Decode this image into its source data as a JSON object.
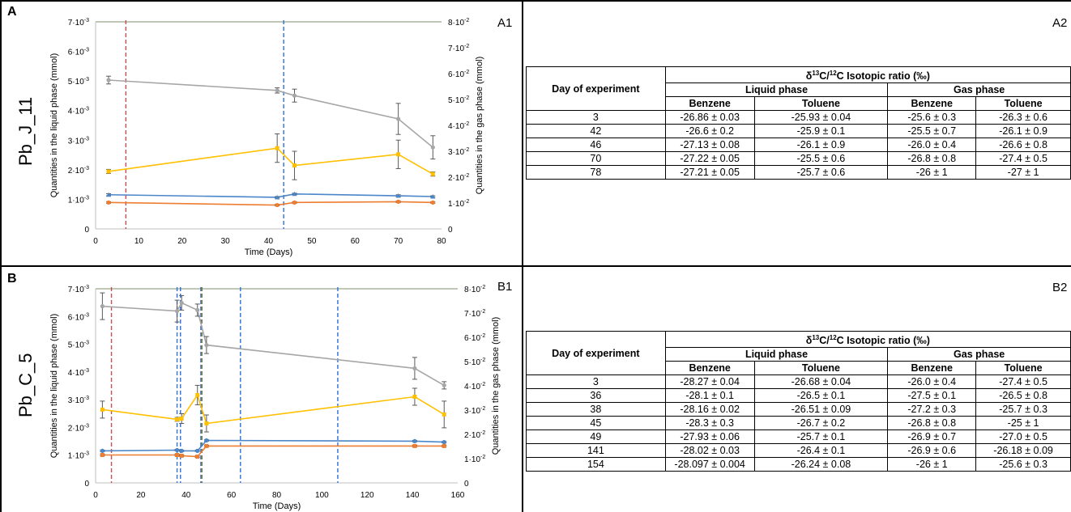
{
  "panels": {
    "A": {
      "letter": "A",
      "sample": "Pb_J_11",
      "chart_label": "A1",
      "table_label": "A2"
    },
    "B": {
      "letter": "B",
      "sample": "Pb_C_5",
      "chart_label": "B1",
      "table_label": "B2"
    }
  },
  "chart_data": [
    {
      "id": "A1",
      "type": "line",
      "xlabel": "Time (Days)",
      "ylabel": "Quantities in the liquid phase (mmol)",
      "y2label": "Quantities in the gas phase (mmol)",
      "xlim": [
        0,
        80
      ],
      "xticks": [
        0,
        10,
        20,
        30,
        40,
        50,
        60,
        70,
        80
      ],
      "ylim": [
        0,
        0.007
      ],
      "yticks": [
        "0",
        "1·10⁻³",
        "2·10⁻³",
        "3·10⁻³",
        "4·10⁻³",
        "5·10⁻³",
        "6·10⁻³",
        "7·10⁻³"
      ],
      "y2lim": [
        0,
        0.08
      ],
      "y2ticks": [
        "0",
        "1·10⁻²",
        "2·10⁻²",
        "3·10⁻²",
        "4·10⁻²",
        "5·10⁻²",
        "6·10⁻²",
        "7·10⁻²",
        "8·10⁻²"
      ],
      "vlines": [
        {
          "x": 7,
          "color": "#c0504d"
        },
        {
          "x": 43.5,
          "color": "#2e6fd8"
        }
      ],
      "series": [
        {
          "axis": "y2",
          "color": "#a6a6a6",
          "marker": "circle",
          "points": [
            [
              3,
              0.0575,
              0.0015
            ],
            [
              42,
              0.0535,
              0.001
            ],
            [
              46,
              0.0515,
              0.0025
            ],
            [
              70,
              0.0425,
              0.006
            ],
            [
              78,
              0.0315,
              0.0045
            ]
          ]
        },
        {
          "axis": "y2",
          "color": "#ffc000",
          "marker": "square",
          "points": [
            [
              3,
              0.0222,
              0.0008
            ],
            [
              42,
              0.0312,
              0.0055
            ],
            [
              46,
              0.0245,
              0.0055
            ],
            [
              70,
              0.0288,
              0.0055
            ],
            [
              78,
              0.0212,
              0.0008
            ]
          ]
        },
        {
          "axis": "y2",
          "color": "#4a86c8",
          "marker": "triangle",
          "points": [
            [
              3,
              0.0132,
              0.0004
            ],
            [
              42,
              0.0122,
              0.0003
            ],
            [
              46,
              0.0135,
              0.0003
            ],
            [
              70,
              0.0128,
              0.0004
            ],
            [
              78,
              0.0125,
              0.0003
            ]
          ]
        },
        {
          "axis": "y2",
          "color": "#ed7d31",
          "marker": "circle",
          "points": [
            [
              3,
              0.0102,
              0.0003
            ],
            [
              42,
              0.0092,
              0.0003
            ],
            [
              46,
              0.0102,
              0.0003
            ],
            [
              70,
              0.0105,
              0.0003
            ],
            [
              78,
              0.0102,
              0.0003
            ]
          ]
        }
      ]
    },
    {
      "id": "B1",
      "type": "line",
      "xlabel": "Time (Days)",
      "ylabel": "Quantities in the liquid phase (mmol)",
      "y2label": "Quantities in the gas phase (mmol)",
      "xlim": [
        0,
        160
      ],
      "xticks": [
        0,
        20,
        40,
        60,
        80,
        100,
        120,
        140,
        160
      ],
      "ylim": [
        0,
        0.007
      ],
      "yticks": [
        "0",
        "1·10⁻³",
        "2·10⁻³",
        "3·10⁻³",
        "4·10⁻³",
        "5·10⁻³",
        "6·10⁻³",
        "7·10⁻³"
      ],
      "y2lim": [
        0,
        0.08
      ],
      "y2ticks": [
        "0",
        "1·10⁻²",
        "2·10⁻²",
        "3·10⁻²",
        "4·10⁻²",
        "5·10⁻²",
        "6·10⁻²",
        "7·10⁻²",
        "8·10⁻²"
      ],
      "vlines": [
        {
          "x": 7,
          "color": "#c0504d"
        },
        {
          "x": 36,
          "color": "#2e6fd8"
        },
        {
          "x": 37.5,
          "color": "#2e6fd8"
        },
        {
          "x": 46.5,
          "color": "#2e6fd8"
        },
        {
          "x": 47,
          "color": "#7a7a3a"
        },
        {
          "x": 64,
          "color": "#2e6fd8"
        },
        {
          "x": 107,
          "color": "#2e6fd8"
        }
      ],
      "series": [
        {
          "axis": "y2",
          "color": "#a6a6a6",
          "marker": "circle",
          "points": [
            [
              3,
              0.0728,
              0.0055
            ],
            [
              36,
              0.0708,
              0.0045
            ],
            [
              38,
              0.0742,
              0.003
            ],
            [
              45,
              0.0712,
              0.0025
            ],
            [
              49,
              0.0568,
              0.0035
            ],
            [
              141,
              0.0472,
              0.0045
            ],
            [
              154,
              0.0402,
              0.0015
            ]
          ]
        },
        {
          "axis": "y2",
          "color": "#ffc000",
          "marker": "square",
          "points": [
            [
              3,
              0.0302,
              0.0035
            ],
            [
              36,
              0.0262,
              0.0008
            ],
            [
              38,
              0.0265,
              0.002
            ],
            [
              45,
              0.0362,
              0.004
            ],
            [
              49,
              0.0245,
              0.0035
            ],
            [
              141,
              0.0355,
              0.0035
            ],
            [
              154,
              0.0282,
              0.0055
            ]
          ]
        },
        {
          "axis": "y2",
          "color": "#4a86c8",
          "marker": "circle",
          "points": [
            [
              3,
              0.0132,
              0.0003
            ],
            [
              36,
              0.0135,
              0.0003
            ],
            [
              38,
              0.0132,
              0.0003
            ],
            [
              45,
              0.0132,
              0.0003
            ],
            [
              49,
              0.0175,
              0.0003
            ],
            [
              141,
              0.0172,
              0.0003
            ],
            [
              154,
              0.0168,
              0.0003
            ]
          ]
        },
        {
          "axis": "y2",
          "color": "#ed7d31",
          "marker": "square",
          "points": [
            [
              3,
              0.0115,
              0.0003
            ],
            [
              36,
              0.0115,
              0.0003
            ],
            [
              38,
              0.0112,
              0.0003
            ],
            [
              45,
              0.0108,
              0.0003
            ],
            [
              49,
              0.0152,
              0.0003
            ],
            [
              141,
              0.0152,
              0.0003
            ],
            [
              154,
              0.0152,
              0.0003
            ]
          ]
        }
      ]
    }
  ],
  "tables": {
    "A2": {
      "col_day": "Day of experiment",
      "header_main": "Isotopic ratio (‰)",
      "liquid": "Liquid phase",
      "gas": "Gas phase",
      "benzene": "Benzene",
      "toluene": "Toluene",
      "rows": [
        [
          "3",
          "-26.86 ± 0.03",
          "-25.93 ± 0.04",
          "-25.6 ± 0.3",
          "-26.3 ± 0.6"
        ],
        [
          "42",
          "-26.6 ± 0.2",
          "-25.9 ± 0.1",
          "-25.5 ± 0.7",
          "-26.1 ± 0.9"
        ],
        [
          "46",
          "-27.13 ± 0.08",
          "-26.1 ± 0.9",
          "-26.0 ± 0.4",
          "-26.6 ± 0.8"
        ],
        [
          "70",
          "-27.22 ± 0.05",
          "-25.5 ± 0.6",
          "-26.8 ± 0.8",
          "-27.4 ± 0.5"
        ],
        [
          "78",
          "-27.21 ± 0.05",
          "-25.7 ± 0.6",
          "-26 ± 1",
          "-27 ± 1"
        ]
      ]
    },
    "B2": {
      "col_day": "Day of experiment",
      "header_main": "Isotopic ratio (‰)",
      "liquid": "Liquid phase",
      "gas": "Gas phase",
      "benzene": "Benzene",
      "toluene": "Toluene",
      "rows": [
        [
          "3",
          "-28.27 ± 0.04",
          "-26.68 ± 0.04",
          "-26.0 ± 0.4",
          "-27.4 ± 0.5"
        ],
        [
          "36",
          "-28.1 ± 0.1",
          "-26.5 ± 0.1",
          "-27.5 ± 0.1",
          "-26.5 ± 0.8"
        ],
        [
          "38",
          "-28.16 ± 0.02",
          "-26.51 ± 0.09",
          "-27.2 ± 0.3",
          "-25.7 ± 0.3"
        ],
        [
          "45",
          "-28.3 ± 0.3",
          "-26.7 ± 0.2",
          "-26.8 ± 0.8",
          "-25 ± 1"
        ],
        [
          "49",
          "-27.93 ± 0.06",
          "-25.7 ± 0.1",
          "-26.9 ± 0.7",
          "-27.0 ± 0.5"
        ],
        [
          "141",
          "-28.02 ± 0.03",
          "-26.4 ± 0.1",
          "-26.9 ± 0.6",
          "-26.18 ± 0.09"
        ],
        [
          "154",
          "-28.097 ± 0.004",
          "-26.24 ± 0.08",
          "-26 ± 1",
          "-25.6 ± 0.3"
        ]
      ]
    }
  }
}
